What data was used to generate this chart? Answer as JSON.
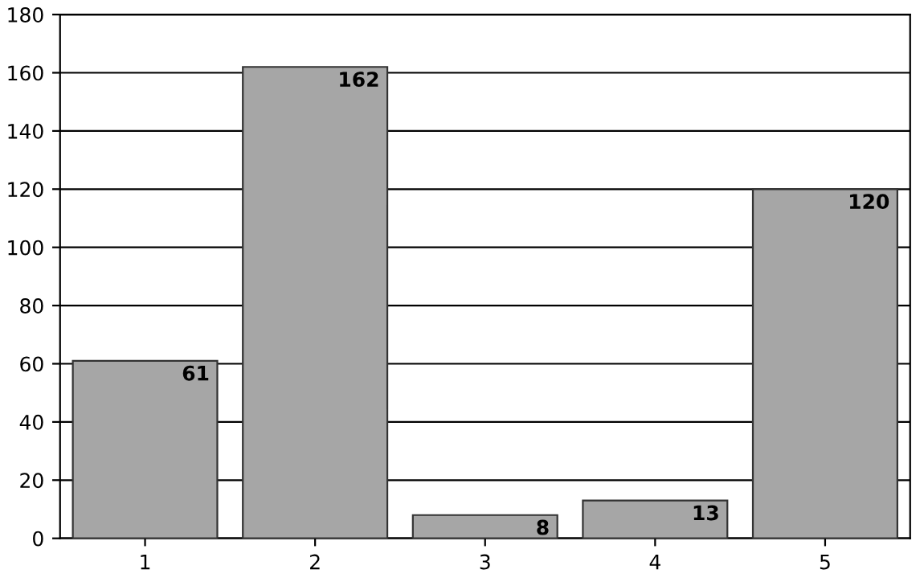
{
  "chart_data": {
    "type": "bar",
    "categories": [
      "1",
      "2",
      "3",
      "4",
      "5"
    ],
    "values": [
      61,
      162,
      8,
      13,
      120
    ],
    "color": "#a6a6a6",
    "ylim": [
      0,
      180
    ],
    "yticks": [
      0,
      20,
      40,
      60,
      80,
      100,
      120,
      140,
      160,
      180
    ],
    "grid": "y",
    "data_labels": true,
    "legend": false
  }
}
